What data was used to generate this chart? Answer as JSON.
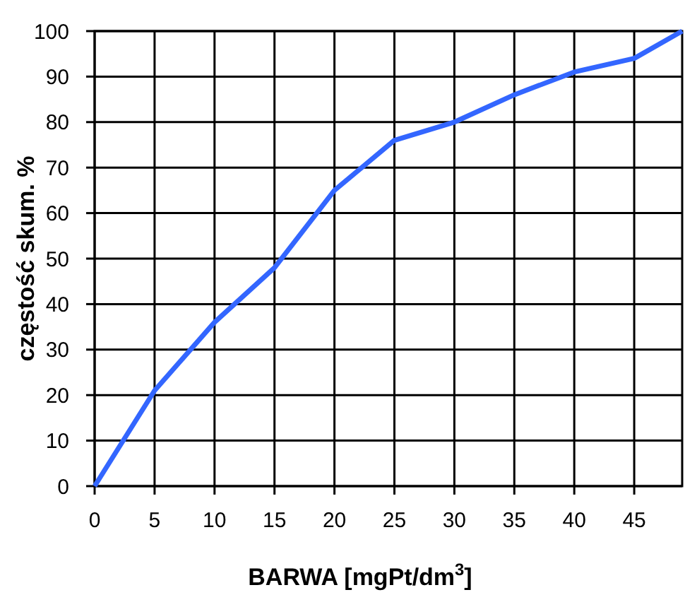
{
  "chart_data": {
    "type": "line",
    "xlabel": "BARWA [mgPt/dm$^{3}$]",
    "ylabel": "częstość skum. %",
    "x": [
      0,
      5,
      10,
      15,
      20,
      25,
      30,
      35,
      40,
      45,
      49
    ],
    "series": [
      {
        "color": "#3366ff",
        "values": [
          0,
          21,
          36,
          48,
          65,
          76,
          80,
          86,
          91,
          94,
          100
        ]
      }
    ],
    "xlim": [
      0,
      49
    ],
    "xticks": [
      0,
      5,
      10,
      15,
      20,
      25,
      30,
      35,
      40,
      45
    ],
    "ylim": [
      0,
      100
    ],
    "yticks": [
      0,
      10,
      20,
      30,
      40,
      50,
      60,
      70,
      80,
      90,
      100
    ],
    "grid": true,
    "marker": "none",
    "line_style": "solid"
  }
}
